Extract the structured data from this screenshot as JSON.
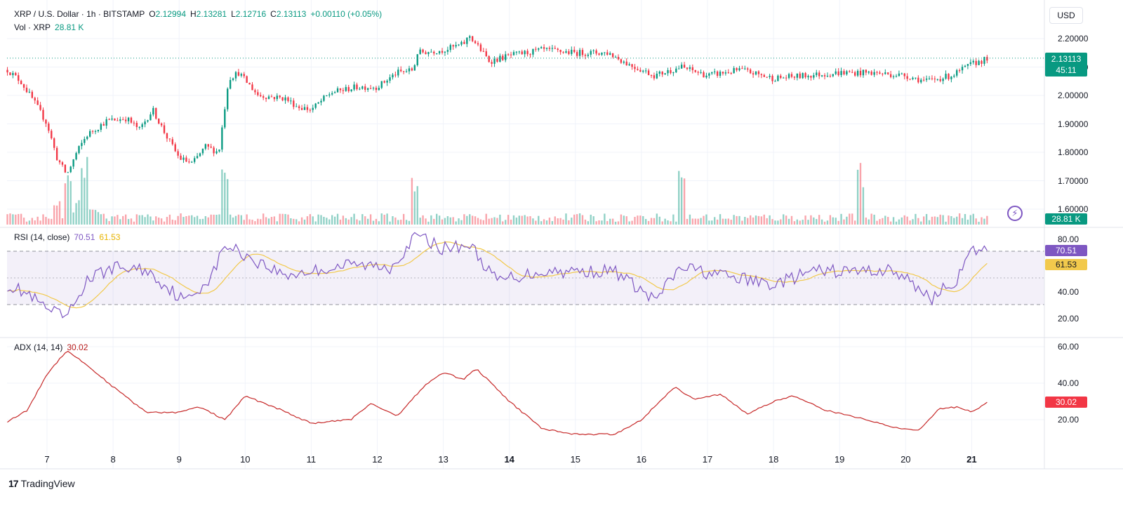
{
  "header": {
    "symbol": "XRP / U.S. Dollar · 1h · BITSTAMP",
    "o_label": "O",
    "o_value": "2.12994",
    "h_label": "H",
    "h_value": "2.13281",
    "l_label": "L",
    "l_value": "2.12716",
    "c_label": "C",
    "c_value": "2.13113",
    "change": "+0.00110 (+0.05%)",
    "vol_label": "Vol · XRP",
    "vol_value": "28.81 K"
  },
  "currency_button": "USD",
  "last_price": {
    "value": "2.13113",
    "countdown": "45:11",
    "volume": "28.81 K"
  },
  "rsi": {
    "label": "RSI (14, close)",
    "value": "70.51",
    "ma_value": "61.53"
  },
  "adx": {
    "label": "ADX (14, 14)",
    "value": "30.02"
  },
  "price_ticks": [
    "2.20000",
    "2.10000",
    "2.00000",
    "1.90000",
    "1.80000",
    "1.70000",
    "1.60000"
  ],
  "rsi_ticks": [
    "80.00",
    "40.00",
    "20.00"
  ],
  "adx_ticks": [
    "60.00",
    "40.00",
    "20.00"
  ],
  "x_ticks": [
    {
      "label": "7",
      "bold": false
    },
    {
      "label": "8",
      "bold": false
    },
    {
      "label": "9",
      "bold": false
    },
    {
      "label": "10",
      "bold": false
    },
    {
      "label": "11",
      "bold": false
    },
    {
      "label": "12",
      "bold": false
    },
    {
      "label": "13",
      "bold": false
    },
    {
      "label": "14",
      "bold": true
    },
    {
      "label": "15",
      "bold": false
    },
    {
      "label": "16",
      "bold": false
    },
    {
      "label": "17",
      "bold": false
    },
    {
      "label": "18",
      "bold": false
    },
    {
      "label": "19",
      "bold": false
    },
    {
      "label": "20",
      "bold": false
    },
    {
      "label": "21",
      "bold": true
    }
  ],
  "brand": "TradingView",
  "colors": {
    "up": "#089981",
    "down": "#f23645",
    "rsi": "#7e57c2",
    "rsi_ma": "#f2c94c",
    "adx": "#c62828",
    "grid": "#f0f3fa"
  },
  "chart_data": {
    "type": "candlestick",
    "timeframe": "1h",
    "x_axis_days": [
      "7",
      "8",
      "9",
      "10",
      "11",
      "12",
      "13",
      "14",
      "15",
      "16",
      "17",
      "18",
      "19",
      "20",
      "21"
    ],
    "price_range": [
      1.58,
      2.25
    ],
    "price_keypoints": [
      {
        "day": 6.4,
        "price": 2.09
      },
      {
        "day": 6.6,
        "price": 2.05
      },
      {
        "day": 6.8,
        "price": 1.98
      },
      {
        "day": 7.0,
        "price": 1.9
      },
      {
        "day": 7.15,
        "price": 1.78
      },
      {
        "day": 7.3,
        "price": 1.72
      },
      {
        "day": 7.45,
        "price": 1.8
      },
      {
        "day": 7.6,
        "price": 1.86
      },
      {
        "day": 7.9,
        "price": 1.91
      },
      {
        "day": 8.2,
        "price": 1.92
      },
      {
        "day": 8.4,
        "price": 1.88
      },
      {
        "day": 8.6,
        "price": 1.95
      },
      {
        "day": 8.8,
        "price": 1.86
      },
      {
        "day": 9.0,
        "price": 1.78
      },
      {
        "day": 9.2,
        "price": 1.76
      },
      {
        "day": 9.4,
        "price": 1.82
      },
      {
        "day": 9.6,
        "price": 1.8
      },
      {
        "day": 9.75,
        "price": 2.06
      },
      {
        "day": 9.9,
        "price": 2.08
      },
      {
        "day": 10.2,
        "price": 2.0
      },
      {
        "day": 10.6,
        "price": 1.99
      },
      {
        "day": 10.8,
        "price": 1.96
      },
      {
        "day": 11.0,
        "price": 1.95
      },
      {
        "day": 11.3,
        "price": 2.01
      },
      {
        "day": 11.7,
        "price": 2.03
      },
      {
        "day": 12.0,
        "price": 2.03
      },
      {
        "day": 12.3,
        "price": 2.08
      },
      {
        "day": 12.55,
        "price": 2.09
      },
      {
        "day": 12.6,
        "price": 2.15
      },
      {
        "day": 13.0,
        "price": 2.16
      },
      {
        "day": 13.3,
        "price": 2.18
      },
      {
        "day": 13.4,
        "price": 2.21
      },
      {
        "day": 13.7,
        "price": 2.12
      },
      {
        "day": 14.0,
        "price": 2.14
      },
      {
        "day": 14.5,
        "price": 2.16
      },
      {
        "day": 15.0,
        "price": 2.15
      },
      {
        "day": 15.5,
        "price": 2.15
      },
      {
        "day": 15.8,
        "price": 2.11
      },
      {
        "day": 16.2,
        "price": 2.07
      },
      {
        "day": 16.6,
        "price": 2.1
      },
      {
        "day": 17.0,
        "price": 2.07
      },
      {
        "day": 17.5,
        "price": 2.09
      },
      {
        "day": 18.0,
        "price": 2.06
      },
      {
        "day": 18.5,
        "price": 2.07
      },
      {
        "day": 19.0,
        "price": 2.08
      },
      {
        "day": 19.5,
        "price": 2.08
      },
      {
        "day": 20.0,
        "price": 2.07
      },
      {
        "day": 20.3,
        "price": 2.05
      },
      {
        "day": 20.7,
        "price": 2.07
      },
      {
        "day": 21.0,
        "price": 2.11
      },
      {
        "day": 21.25,
        "price": 2.13
      }
    ],
    "volume_spikes_days": [
      7.3,
      7.55,
      9.7,
      12.55,
      16.6,
      19.3
    ],
    "rsi_series": {
      "range": [
        10,
        90
      ],
      "levels": [
        70,
        50,
        30
      ],
      "last": 70.51,
      "ma_last": 61.53,
      "keypoints": [
        {
          "day": 6.4,
          "value": 45
        },
        {
          "day": 6.7,
          "value": 38
        },
        {
          "day": 7.0,
          "value": 26
        },
        {
          "day": 7.3,
          "value": 20
        },
        {
          "day": 7.6,
          "value": 48
        },
        {
          "day": 8.0,
          "value": 58
        },
        {
          "day": 8.5,
          "value": 56
        },
        {
          "day": 9.1,
          "value": 32
        },
        {
          "day": 9.5,
          "value": 52
        },
        {
          "day": 9.7,
          "value": 75
        },
        {
          "day": 10.2,
          "value": 62
        },
        {
          "day": 10.6,
          "value": 52
        },
        {
          "day": 11.0,
          "value": 55
        },
        {
          "day": 11.6,
          "value": 60
        },
        {
          "day": 12.2,
          "value": 58
        },
        {
          "day": 12.6,
          "value": 82
        },
        {
          "day": 13.0,
          "value": 72
        },
        {
          "day": 13.4,
          "value": 75
        },
        {
          "day": 13.8,
          "value": 48
        },
        {
          "day": 14.5,
          "value": 55
        },
        {
          "day": 15.2,
          "value": 55
        },
        {
          "day": 15.6,
          "value": 55
        },
        {
          "day": 16.2,
          "value": 33
        },
        {
          "day": 16.6,
          "value": 58
        },
        {
          "day": 17.2,
          "value": 52
        },
        {
          "day": 18.0,
          "value": 45
        },
        {
          "day": 18.6,
          "value": 55
        },
        {
          "day": 19.2,
          "value": 55
        },
        {
          "day": 19.8,
          "value": 56
        },
        {
          "day": 20.4,
          "value": 35
        },
        {
          "day": 20.8,
          "value": 50
        },
        {
          "day": 21.0,
          "value": 70
        },
        {
          "day": 21.25,
          "value": 70.51
        }
      ]
    },
    "adx_series": {
      "range": [
        0,
        65
      ],
      "last": 30.02,
      "keypoints": [
        {
          "day": 6.4,
          "value": 19
        },
        {
          "day": 6.7,
          "value": 25
        },
        {
          "day": 7.0,
          "value": 45
        },
        {
          "day": 7.3,
          "value": 58
        },
        {
          "day": 7.6,
          "value": 50
        },
        {
          "day": 8.0,
          "value": 38
        },
        {
          "day": 8.5,
          "value": 24
        },
        {
          "day": 9.0,
          "value": 24
        },
        {
          "day": 9.3,
          "value": 27
        },
        {
          "day": 9.7,
          "value": 20
        },
        {
          "day": 10.0,
          "value": 33
        },
        {
          "day": 10.5,
          "value": 26
        },
        {
          "day": 11.0,
          "value": 18
        },
        {
          "day": 11.6,
          "value": 20
        },
        {
          "day": 11.9,
          "value": 29
        },
        {
          "day": 12.3,
          "value": 22
        },
        {
          "day": 12.7,
          "value": 38
        },
        {
          "day": 13.0,
          "value": 46
        },
        {
          "day": 13.3,
          "value": 42
        },
        {
          "day": 13.5,
          "value": 48
        },
        {
          "day": 14.0,
          "value": 30
        },
        {
          "day": 14.5,
          "value": 15
        },
        {
          "day": 15.0,
          "value": 12
        },
        {
          "day": 15.6,
          "value": 12
        },
        {
          "day": 16.0,
          "value": 20
        },
        {
          "day": 16.5,
          "value": 38
        },
        {
          "day": 16.8,
          "value": 31
        },
        {
          "day": 17.2,
          "value": 34
        },
        {
          "day": 17.6,
          "value": 23
        },
        {
          "day": 18.0,
          "value": 30
        },
        {
          "day": 18.3,
          "value": 33
        },
        {
          "day": 18.8,
          "value": 25
        },
        {
          "day": 19.3,
          "value": 21
        },
        {
          "day": 19.8,
          "value": 16
        },
        {
          "day": 20.2,
          "value": 14
        },
        {
          "day": 20.5,
          "value": 26
        },
        {
          "day": 20.8,
          "value": 27
        },
        {
          "day": 21.0,
          "value": 24
        },
        {
          "day": 21.25,
          "value": 30.02
        }
      ]
    }
  }
}
